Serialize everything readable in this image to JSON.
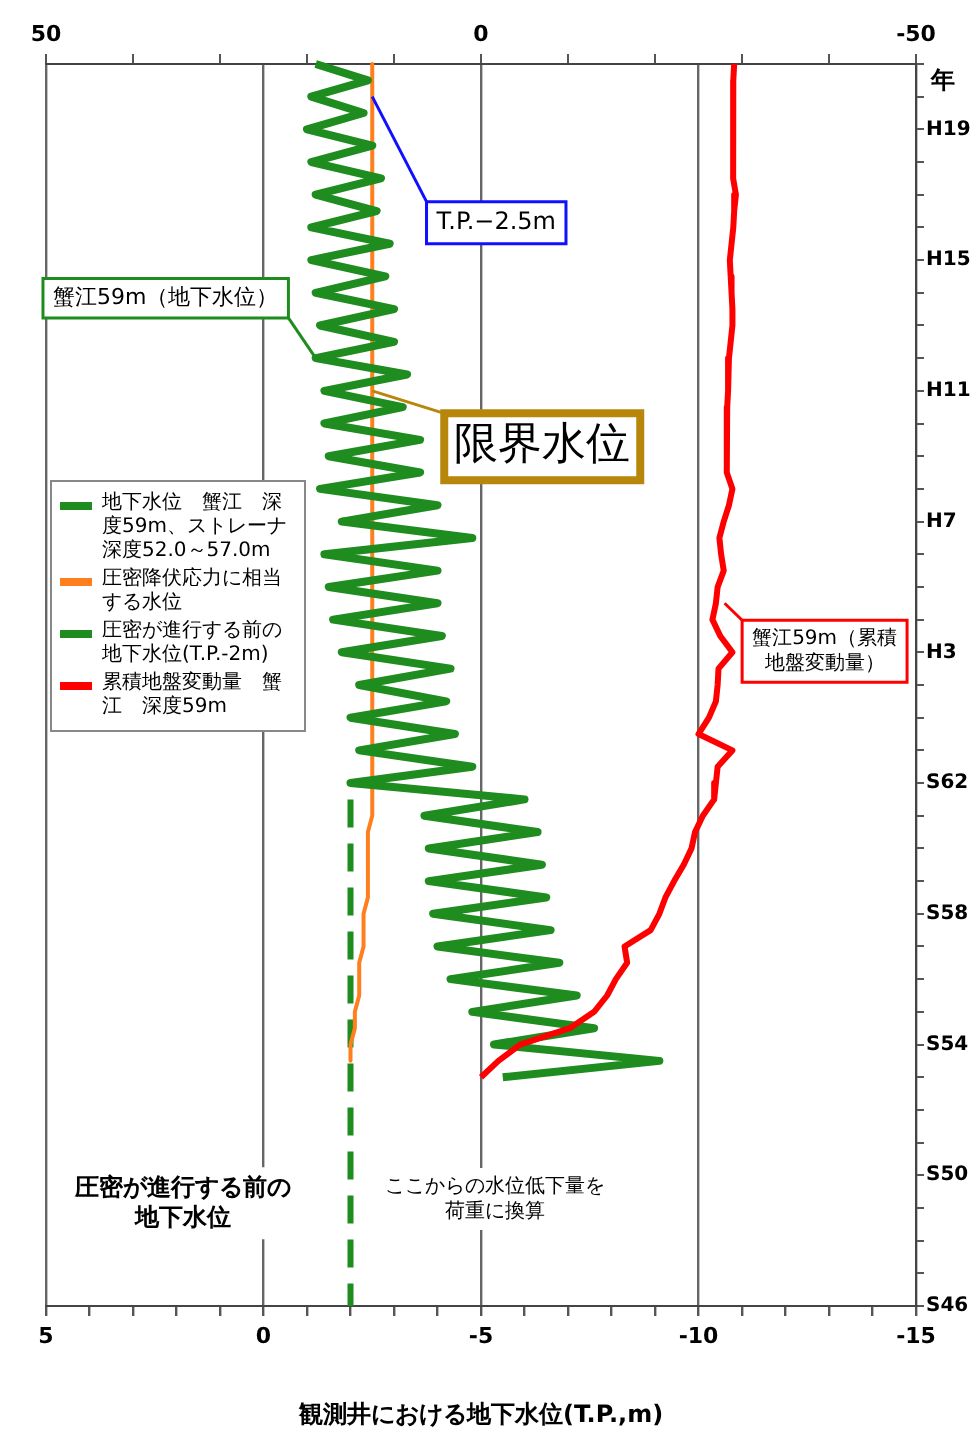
{
  "chart_data": {
    "type": "line",
    "orientation": "horizontal",
    "xlabel": "観測井における地下水位(T.P.,m)",
    "ylabel": "年",
    "categories": [
      null,
      null,
      null,
      null,
      "H19",
      null,
      null,
      null,
      null,
      null,
      null,
      null,
      "H15",
      null,
      null,
      null,
      null,
      null,
      null,
      null,
      "H11",
      null,
      null,
      null,
      null,
      null,
      null,
      null,
      "H7",
      null,
      null,
      null,
      null,
      null,
      null,
      null,
      "H3",
      null,
      null,
      null,
      null,
      null,
      null,
      null,
      "S62",
      null,
      null,
      null,
      null,
      null,
      null,
      null,
      "S58",
      null,
      null,
      null,
      null,
      null,
      null,
      null,
      "S54",
      null,
      null,
      null,
      null,
      null,
      null,
      null,
      "S50",
      null,
      null,
      null,
      null,
      null,
      null,
      null,
      "S46"
    ],
    "xlim": [
      5,
      -15
    ],
    "xticks": [
      -15,
      {
        "value": -14,
        "label": null
      },
      {
        "value": -13,
        "label": null
      },
      {
        "value": -12,
        "label": null
      },
      {
        "value": -11,
        "label": null
      },
      -10,
      {
        "value": -9,
        "label": null
      },
      {
        "value": -8,
        "label": null
      },
      {
        "value": -7,
        "label": null
      },
      {
        "value": -6,
        "label": null
      },
      -5,
      {
        "value": -4,
        "label": null
      },
      {
        "value": -3,
        "label": null
      },
      {
        "value": -2,
        "label": null
      },
      {
        "value": -1,
        "label": null
      },
      0,
      {
        "value": 1,
        "label": null
      },
      {
        "value": 2,
        "label": null
      },
      {
        "value": 3,
        "label": null
      },
      {
        "value": 4,
        "label": null
      },
      5
    ],
    "x2lim": [
      50,
      -50
    ],
    "x2ticks": [
      -50,
      {
        "value": -40,
        "label": null
      },
      {
        "value": -30,
        "label": null
      },
      {
        "value": -20,
        "label": null
      },
      {
        "value": -10,
        "label": null
      },
      0,
      {
        "value": 10,
        "label": null
      },
      {
        "value": 20,
        "label": null
      },
      {
        "value": 30,
        "label": null
      },
      {
        "value": 40,
        "label": null
      },
      50
    ],
    "grid": "x",
    "legend": "left",
    "marker": "none",
    "series": [
      {
        "name": "地下水位　蟹江　深度59m、ストレーナ深度52.0～57.0m",
        "color": "#1e8c1e",
        "values": [
          -1.2,
          -2.4,
          -1.1,
          -2.3,
          -1.0,
          -2.5,
          -1.1,
          -2.7,
          -1.2,
          -2.6,
          -1.1,
          -2.9,
          -1.1,
          -2.8,
          -1.2,
          -3.0,
          -1.3,
          -3.0,
          -1.2,
          -3.3,
          -1.4,
          -3.2,
          -1.4,
          -3.6,
          -1.5,
          -3.6,
          -1.3,
          -4.0,
          -1.8,
          -4.8,
          -1.4,
          -4.0,
          -1.5,
          -4.0,
          -1.6,
          -4.1,
          -1.8,
          -4.3,
          -2.2,
          -4.2,
          -2.0,
          -4.4,
          -2.2,
          -4.8,
          -2.0,
          -6.0,
          -3.7,
          -6.3,
          -3.8,
          -6.4,
          -3.8,
          -6.5,
          -3.9,
          -6.6,
          -4.0,
          -6.8,
          -4.3,
          -7.2,
          -4.8,
          -7.6,
          -5.3,
          -9.1,
          -5.5,
          null,
          null,
          null,
          null,
          null,
          null,
          null,
          null,
          null,
          null,
          null,
          null,
          null,
          null
        ]
      },
      {
        "name": "圧密降伏応力に相当する水位",
        "color": "#ff7f1e",
        "values": [
          -2.5,
          -2.5,
          -2.5,
          -2.5,
          -2.5,
          -2.5,
          -2.5,
          -2.5,
          -2.5,
          -2.5,
          -2.5,
          -2.5,
          -2.5,
          -2.5,
          -2.5,
          -2.5,
          -2.5,
          -2.5,
          -2.5,
          -2.5,
          -2.5,
          -2.5,
          -2.5,
          -2.5,
          -2.5,
          -2.5,
          -2.5,
          -2.5,
          -2.5,
          -2.5,
          -2.5,
          -2.5,
          -2.5,
          -2.5,
          -2.5,
          -2.5,
          -2.5,
          -2.5,
          -2.5,
          -2.5,
          -2.5,
          -2.5,
          -2.5,
          -2.5,
          -2.5,
          -2.5,
          -2.5,
          -2.4,
          -2.4,
          -2.4,
          -2.4,
          -2.4,
          -2.3,
          -2.3,
          -2.3,
          -2.2,
          -2.2,
          -2.2,
          -2.1,
          -2.1,
          -2.0,
          -2.0,
          null,
          null,
          null,
          null,
          null,
          null,
          null,
          null,
          null,
          null,
          null,
          null,
          null,
          null,
          null
        ]
      },
      {
        "name": "圧密が進行する前の地下水位(T.P.-2m)",
        "color": "#1e8c1e",
        "line_style": "dashed",
        "values": [
          null,
          null,
          null,
          null,
          null,
          null,
          null,
          null,
          null,
          null,
          null,
          null,
          null,
          null,
          null,
          null,
          null,
          null,
          null,
          null,
          null,
          null,
          null,
          null,
          null,
          null,
          null,
          null,
          null,
          null,
          null,
          null,
          null,
          null,
          null,
          null,
          null,
          null,
          null,
          null,
          null,
          null,
          null,
          null,
          null,
          -2,
          -2,
          -2,
          -2,
          -2,
          -2,
          -2,
          -2,
          -2,
          -2,
          -2,
          -2,
          -2,
          -2,
          -2,
          -2,
          -2,
          -2,
          -2,
          -2,
          -2,
          -2,
          -2,
          -2,
          -2,
          -2,
          -2,
          -2,
          -2,
          -2,
          -2,
          -2
        ]
      },
      {
        "name": "累積地盤変動量　蟹江　深度59m",
        "color": "#ff0000",
        "axis": "x2",
        "values": [
          -29.1,
          -29.0,
          -29.0,
          -29.0,
          -29.0,
          -29.0,
          -28.9,
          -29.0,
          -29.3,
          -29.1,
          -29.0,
          -28.8,
          -28.6,
          -28.7,
          -28.8,
          -28.9,
          -28.9,
          -28.7,
          -28.5,
          -28.4,
          -28.4,
          -28.3,
          -28.3,
          -28.3,
          -28.2,
          -28.2,
          -28.9,
          -28.5,
          -27.9,
          -27.4,
          -27.6,
          -27.9,
          -27.2,
          -27.0,
          -26.6,
          -27.5,
          -28.9,
          -27.3,
          -27.2,
          -27.0,
          -26.2,
          -25.0,
          -28.9,
          -27.2,
          -27.0,
          -26.8,
          -25.5,
          -24.6,
          -24.2,
          -23.3,
          -22.2,
          -21.2,
          -20.5,
          -19.5,
          -16.5,
          -16.8,
          -15.5,
          -14.5,
          -13.0,
          -10.2,
          -4.5,
          -2.0,
          0,
          null,
          null,
          null,
          null,
          null,
          null,
          null,
          null,
          null,
          null,
          null,
          null,
          null,
          null
        ]
      }
    ],
    "annotations": [
      {
        "text": "蟹江59m（地下水位）",
        "x": -1.2
      },
      {
        "text": "限界水位",
        "x": -2.5
      },
      {
        "text": "T.P.−2.5m",
        "x": -2.5
      },
      {
        "text": "蟹江59m（累積地盤変動量）",
        "x": -10.6
      },
      {
        "text": "圧密が進行する前の地下水位",
        "x": -2
      },
      {
        "text": "ここからの水位低下量を荷重に換算",
        "x": -2
      }
    ]
  }
}
